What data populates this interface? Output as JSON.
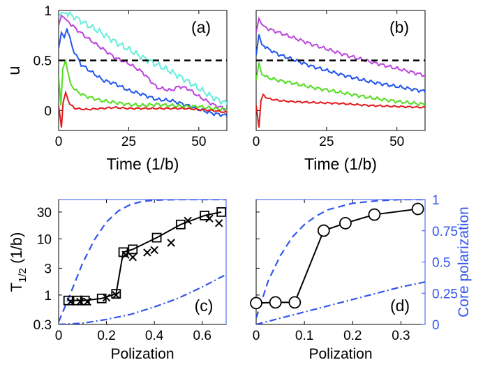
{
  "colors": {
    "red": "#e31a1c",
    "green": "#55dd22",
    "blue": "#2255ee",
    "magenta": "#bb44dd",
    "cyan": "#66eedd",
    "dash_ref": "#000000",
    "right_axis": "#3355ee"
  },
  "chart_data": [
    {
      "id": "a",
      "type": "line",
      "panel_label": "(a)",
      "xlabel": "Time (1/b)",
      "ylabel": "u",
      "xlim": [
        0,
        60
      ],
      "ylim": [
        -0.2,
        1.0
      ],
      "xticks": [
        0,
        25,
        50
      ],
      "xtick_labels": [
        "0",
        "25",
        "50"
      ],
      "yticks": [
        0,
        0.5,
        1
      ],
      "ytick_labels": [
        "0",
        "0.5",
        "1"
      ],
      "reference_line": {
        "y": 0.5,
        "style": "dashed"
      },
      "series": [
        {
          "name": "cyan",
          "x": [
            0,
            1,
            3,
            6,
            10,
            15,
            20,
            25,
            30,
            35,
            40,
            45,
            50,
            55,
            60
          ],
          "y": [
            0.93,
            0.98,
            0.97,
            0.93,
            0.86,
            0.78,
            0.69,
            0.61,
            0.53,
            0.46,
            0.39,
            0.31,
            0.22,
            0.13,
            0.07
          ]
        },
        {
          "name": "magenta",
          "x": [
            0,
            1,
            3,
            6,
            10,
            15,
            20,
            25,
            30,
            35,
            40,
            43,
            46,
            50,
            55,
            60
          ],
          "y": [
            0.85,
            0.95,
            0.9,
            0.82,
            0.73,
            0.63,
            0.53,
            0.47,
            0.38,
            0.23,
            0.2,
            0.24,
            0.22,
            0.14,
            0.06,
            0.01
          ]
        },
        {
          "name": "blue",
          "x": [
            0,
            1,
            2,
            3,
            5,
            8,
            12,
            16,
            20,
            25,
            30,
            35,
            40,
            45,
            50,
            55,
            60
          ],
          "y": [
            0.62,
            0.78,
            0.73,
            0.82,
            0.62,
            0.46,
            0.38,
            0.3,
            0.27,
            0.2,
            0.16,
            0.11,
            0.1,
            0.06,
            0.01,
            -0.03,
            -0.05
          ]
        },
        {
          "name": "green",
          "x": [
            0,
            0.8,
            1.5,
            2.5,
            4,
            6,
            9,
            15,
            20,
            25,
            30,
            35,
            40,
            45,
            50,
            55,
            60
          ],
          "y": [
            0.35,
            0.05,
            0.42,
            0.5,
            0.28,
            0.2,
            0.15,
            0.1,
            0.08,
            0.06,
            0.05,
            0.06,
            0.05,
            0.04,
            0.04,
            0.02,
            0.01
          ]
        },
        {
          "name": "red",
          "x": [
            0,
            1,
            1.6,
            2.5,
            4,
            6,
            10,
            15,
            20,
            25,
            30,
            35,
            40,
            45,
            50,
            55,
            60
          ],
          "y": [
            0.05,
            -0.17,
            0.08,
            0.18,
            0.06,
            0.02,
            0.01,
            0.02,
            0.03,
            0.02,
            0.02,
            0.02,
            0.02,
            0.02,
            0.01,
            0.0,
            -0.02
          ]
        }
      ]
    },
    {
      "id": "b",
      "type": "line",
      "panel_label": "(b)",
      "xlabel": "Time (1/b)",
      "ylabel": "",
      "xlim": [
        0,
        60
      ],
      "ylim": [
        -0.2,
        1.0
      ],
      "xticks": [
        0,
        25,
        50
      ],
      "xtick_labels": [
        "0",
        "25",
        "50"
      ],
      "reference_line": {
        "y": 0.5,
        "style": "dashed"
      },
      "series": [
        {
          "name": "magenta",
          "x": [
            0,
            1,
            2,
            4,
            8,
            12,
            20,
            30,
            40,
            50,
            60
          ],
          "y": [
            0.78,
            0.92,
            0.86,
            0.82,
            0.78,
            0.74,
            0.66,
            0.57,
            0.49,
            0.42,
            0.35
          ]
        },
        {
          "name": "blue",
          "x": [
            0,
            1,
            2,
            4,
            8,
            12,
            20,
            30,
            40,
            50,
            60
          ],
          "y": [
            0.55,
            0.76,
            0.66,
            0.62,
            0.56,
            0.52,
            0.44,
            0.36,
            0.29,
            0.24,
            0.19
          ]
        },
        {
          "name": "green",
          "x": [
            0,
            1,
            2,
            4,
            8,
            12,
            20,
            30,
            40,
            50,
            60
          ],
          "y": [
            0.3,
            0.48,
            0.36,
            0.33,
            0.3,
            0.28,
            0.23,
            0.18,
            0.13,
            0.09,
            0.06
          ]
        },
        {
          "name": "red",
          "x": [
            0,
            1,
            1.7,
            2.5,
            4,
            8,
            12,
            20,
            30,
            40,
            50,
            60
          ],
          "y": [
            0.05,
            -0.17,
            0.1,
            0.16,
            0.12,
            0.1,
            0.09,
            0.08,
            0.07,
            0.05,
            0.04,
            0.03
          ]
        }
      ]
    },
    {
      "id": "c",
      "type": "scatter",
      "panel_label": "(c)",
      "xlabel": "Polization",
      "ylabel": "T",
      "ylabel_sub": "1/2",
      "ylabel_unit": " (1/b)",
      "xlim": [
        0,
        0.7
      ],
      "ylim": [
        0.3,
        50
      ],
      "yscale": "log",
      "xticks": [
        0,
        0.2,
        0.4,
        0.6
      ],
      "xtick_labels": [
        "0",
        "0.2",
        "0.4",
        "0.6"
      ],
      "yticks": [
        0.3,
        1,
        3,
        10,
        30
      ],
      "ytick_labels": [
        "0.3",
        "1",
        "3",
        "10",
        "30"
      ],
      "series": [
        {
          "name": "squares",
          "marker": "square",
          "x": [
            0.04,
            0.08,
            0.11,
            0.18,
            0.24,
            0.27,
            0.31,
            0.41,
            0.51,
            0.61,
            0.68
          ],
          "y": [
            0.8,
            0.8,
            0.8,
            0.87,
            1.05,
            5.8,
            6.5,
            10.5,
            18,
            26,
            30
          ]
        },
        {
          "name": "crosses",
          "marker": "cross",
          "x": [
            0.05,
            0.09,
            0.12,
            0.2,
            0.24,
            0.28,
            0.31,
            0.37,
            0.4,
            0.47,
            0.54,
            0.63,
            0.67
          ],
          "y": [
            0.76,
            0.76,
            0.76,
            0.9,
            1.0,
            5.2,
            4.7,
            5.7,
            6.3,
            8.5,
            21,
            23,
            19
          ]
        },
        {
          "name": "core_dashed",
          "axis": "right",
          "style": "dashed",
          "x": [
            0,
            0.05,
            0.1,
            0.15,
            0.2,
            0.25,
            0.3,
            0.35,
            0.4,
            0.5,
            0.7
          ],
          "y": [
            0.02,
            0.25,
            0.49,
            0.68,
            0.82,
            0.91,
            0.96,
            0.985,
            0.995,
            1.0,
            1.0
          ]
        },
        {
          "name": "core_dashdot",
          "axis": "right",
          "style": "dashdot",
          "x": [
            0,
            0.1,
            0.2,
            0.3,
            0.4,
            0.5,
            0.6,
            0.7
          ],
          "y": [
            0.0,
            0.01,
            0.04,
            0.08,
            0.14,
            0.21,
            0.3,
            0.4
          ]
        }
      ]
    },
    {
      "id": "d",
      "type": "scatter",
      "panel_label": "(d)",
      "xlabel": "Polization",
      "ylabel": "Core polarization",
      "xlim": [
        0,
        0.35
      ],
      "ylim": [
        0.3,
        50
      ],
      "yscale": "log",
      "right_ylim": [
        0,
        1
      ],
      "xticks": [
        0,
        0.1,
        0.2,
        0.3
      ],
      "xtick_labels": [
        "0",
        "0.1",
        "0.2",
        "0.3"
      ],
      "right_yticks": [
        0,
        0.25,
        0.5,
        0.75,
        1
      ],
      "right_ytick_labels": [
        "0",
        "0.25",
        "0.5",
        "0.75",
        "1"
      ],
      "series": [
        {
          "name": "circles",
          "marker": "circle",
          "x": [
            0.0,
            0.04,
            0.08,
            0.14,
            0.185,
            0.245,
            0.335
          ],
          "y": [
            0.72,
            0.74,
            0.74,
            14,
            19,
            27,
            34
          ]
        },
        {
          "name": "core_dashed",
          "axis": "right",
          "style": "dashed",
          "x": [
            0,
            0.025,
            0.05,
            0.075,
            0.1,
            0.125,
            0.15,
            0.2,
            0.25,
            0.3,
            0.35
          ],
          "y": [
            0.05,
            0.35,
            0.55,
            0.7,
            0.8,
            0.87,
            0.92,
            0.97,
            0.99,
            1.0,
            1.0
          ]
        },
        {
          "name": "core_dashdot",
          "axis": "right",
          "style": "dashdot",
          "x": [
            0,
            0.1,
            0.2,
            0.3,
            0.35
          ],
          "y": [
            0.0,
            0.1,
            0.2,
            0.3,
            0.34
          ]
        }
      ]
    }
  ]
}
